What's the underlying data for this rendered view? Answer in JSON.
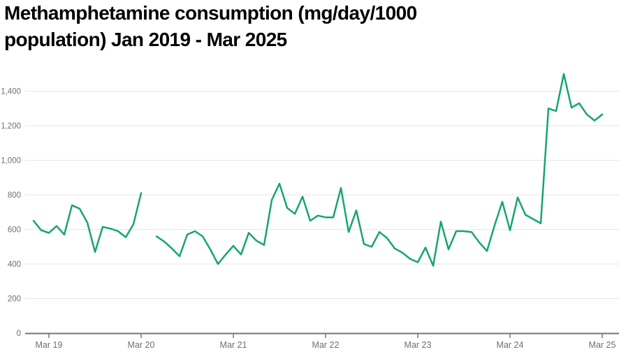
{
  "title": "Methamphetamine consumption (mg/day/1000 population) Jan 2019 - Mar 2025",
  "colors": {
    "series_green": "#17a56d",
    "gridline": "#e6e6e6",
    "axis_line": "#757575",
    "tick": "#757575",
    "tick_label": "#6f6f6f",
    "title": "#000000",
    "background": "#ffffff"
  },
  "chart_data": {
    "type": "line",
    "title": "Methamphetamine consumption (mg/day/1000 population) Jan 2019 - Mar 2025",
    "x_start": "2019-01",
    "x_end": "2025-03",
    "x_interval": "monthly",
    "x_tick_labels": [
      "Mar 19",
      "Mar 20",
      "Mar 21",
      "Mar 22",
      "Mar 23",
      "Mar 24",
      "Mar 25"
    ],
    "x_tick_month_indices": [
      2,
      14,
      26,
      38,
      50,
      62,
      74
    ],
    "y_ticks": [
      0,
      200,
      400,
      600,
      800,
      1000,
      1200,
      1400
    ],
    "y_tick_labels": [
      "0",
      "200",
      "400",
      "600",
      "800",
      "1,000",
      "1,200",
      "1,400"
    ],
    "ylim": [
      0,
      1500
    ],
    "grid": "horizontal",
    "legend": "none",
    "missing_months": [
      "2020-04"
    ],
    "series": [
      {
        "name": "Methamphetamine consumption (mg/day/1000 population)",
        "color": "#17a56d",
        "values": [
          650,
          595,
          580,
          620,
          570,
          740,
          720,
          640,
          470,
          615,
          605,
          590,
          555,
          630,
          810,
          null,
          560,
          530,
          490,
          445,
          570,
          590,
          560,
          485,
          400,
          455,
          505,
          455,
          580,
          535,
          510,
          770,
          865,
          725,
          690,
          790,
          650,
          680,
          670,
          670,
          840,
          585,
          710,
          515,
          500,
          585,
          550,
          490,
          465,
          430,
          410,
          495,
          390,
          645,
          485,
          590,
          590,
          585,
          525,
          475,
          625,
          760,
          595,
          785,
          685,
          660,
          635,
          1300,
          1285,
          1500,
          1305,
          1330,
          1265,
          1230,
          1265
        ]
      }
    ]
  }
}
